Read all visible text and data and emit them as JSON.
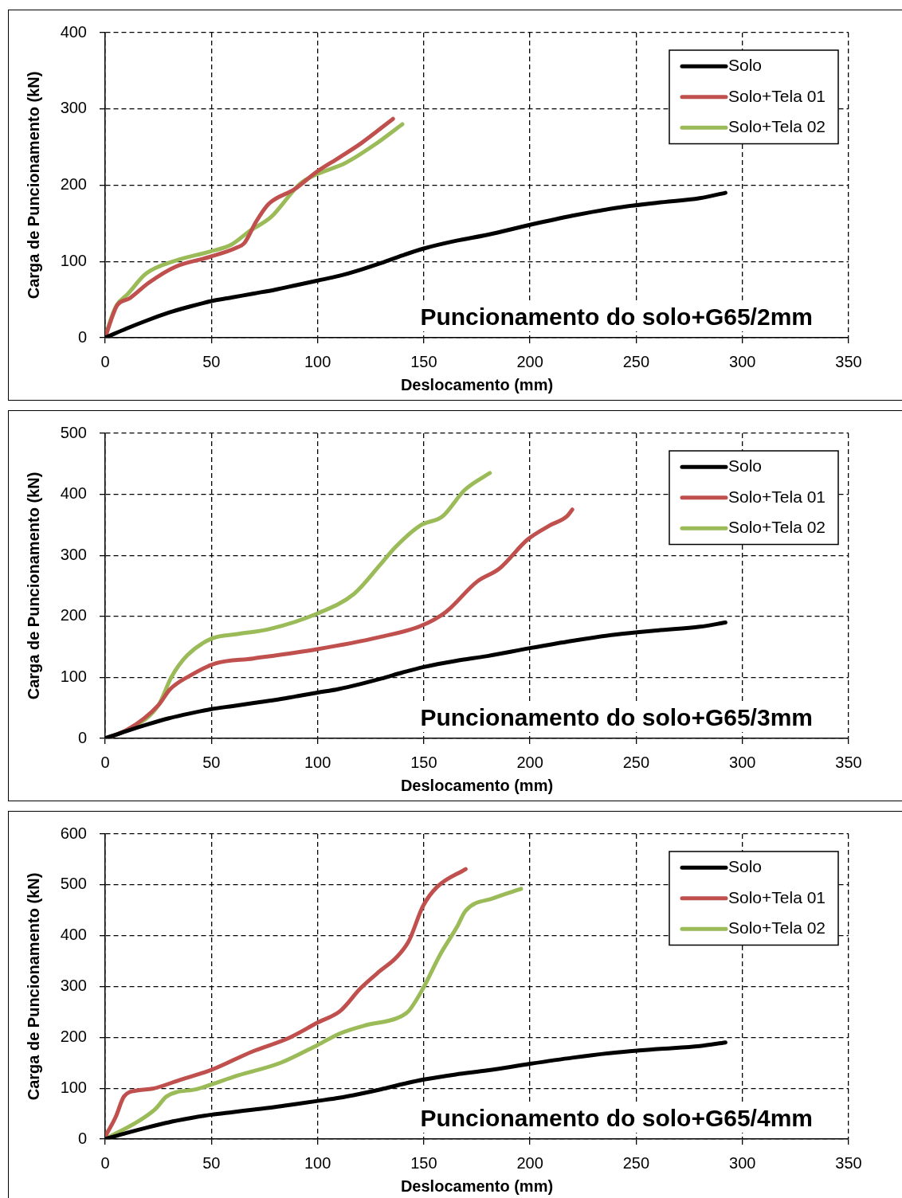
{
  "chart_data": [
    {
      "type": "line",
      "title": "Puncionamento do solo+G65/2mm",
      "xlabel": "Deslocamento (mm)",
      "ylabel": "Carga de Puncionamento (kN)",
      "xlim": [
        0,
        350
      ],
      "xticks": [
        0,
        50,
        100,
        150,
        200,
        250,
        300,
        350
      ],
      "ylim": [
        0,
        400
      ],
      "yticks": [
        0,
        100,
        200,
        300,
        400
      ],
      "grid": true,
      "legend": "top right",
      "marker": "none",
      "line_style": "solid",
      "series": [
        {
          "name": "Solo",
          "color": "#000000",
          "x": [
            0,
            10,
            20,
            30,
            40,
            50,
            60,
            70,
            80,
            90,
            100,
            110,
            120,
            130,
            140,
            150,
            165,
            180,
            200,
            220,
            240,
            260,
            280,
            292
          ],
          "values": [
            0,
            12,
            23,
            33,
            41,
            48,
            53,
            58,
            63,
            69,
            75,
            81,
            89,
            98,
            108,
            117,
            127,
            135,
            148,
            160,
            170,
            177,
            183,
            190
          ]
        },
        {
          "name": "Solo+Tela 01",
          "color": "#c0504d",
          "x": [
            0,
            3,
            5.5,
            11.7,
            20.5,
            33,
            49.3,
            61.8,
            65.5,
            71,
            76.8,
            89.3,
            99.3,
            110,
            120.5,
            135.5
          ],
          "values": [
            0,
            25,
            42,
            52,
            72,
            93,
            106,
            118,
            124,
            152,
            175,
            195,
            217,
            236,
            255,
            287
          ]
        },
        {
          "name": "Solo+Tela 02",
          "color": "#9bbb59",
          "x": [
            0,
            3,
            5.5,
            10.5,
            19.2,
            33,
            49.3,
            59.3,
            68,
            78,
            91.8,
            99.3,
            113,
            126.8,
            139.9
          ],
          "values": [
            0,
            27,
            43,
            57,
            84,
            101,
            113,
            122,
            140,
            158,
            202,
            214,
            229,
            253,
            280
          ]
        }
      ]
    },
    {
      "type": "line",
      "title": "Puncionamento do solo+G65/3mm",
      "xlabel": "Deslocamento (mm)",
      "ylabel": "Carga de Puncionamento (kN)",
      "xlim": [
        0,
        350
      ],
      "xticks": [
        0,
        50,
        100,
        150,
        200,
        250,
        300,
        350
      ],
      "ylim": [
        0,
        500
      ],
      "yticks": [
        0,
        100,
        200,
        300,
        400,
        500
      ],
      "grid": true,
      "legend": "top right",
      "marker": "none",
      "line_style": "solid",
      "series": [
        {
          "name": "Solo",
          "color": "#000000",
          "x": [
            0,
            10,
            20,
            30,
            40,
            50,
            60,
            70,
            80,
            90,
            100,
            110,
            120,
            130,
            140,
            150,
            165,
            180,
            200,
            220,
            240,
            260,
            280,
            292
          ],
          "values": [
            0,
            12,
            23,
            33,
            41,
            48,
            53,
            58,
            63,
            69,
            75,
            81,
            89,
            98,
            108,
            117,
            127,
            135,
            148,
            160,
            170,
            177,
            183,
            190
          ]
        },
        {
          "name": "Solo+Tela 01",
          "color": "#c0504d",
          "x": [
            0,
            10.4,
            25.2,
            30.4,
            40,
            51.9,
            69.7,
            99.4,
            129.1,
            148.4,
            160.3,
            175.1,
            185.5,
            198.9,
            209.3,
            217.4,
            219.9
          ],
          "values": [
            0,
            14,
            55,
            80,
            103,
            123,
            131,
            146,
            166,
            184,
            207,
            257,
            278,
            326,
            349,
            364,
            375
          ]
        },
        {
          "name": "Solo+Tela 02",
          "color": "#9bbb59",
          "x": [
            0,
            10.4,
            25.2,
            31.1,
            38.6,
            50.4,
            62.3,
            77.1,
            99.4,
            117.2,
            129.1,
            136.5,
            148.4,
            158.8,
            169.2,
            181.1
          ],
          "values": [
            0,
            14,
            55,
            100,
            136,
            164,
            171,
            179,
            204,
            237,
            283,
            313,
            349,
            364,
            407,
            435
          ]
        }
      ]
    },
    {
      "type": "line",
      "title": "Puncionamento do solo+G65/4mm",
      "xlabel": "Deslocamento (mm)",
      "ylabel": "Carga de Puncionamento (kN)",
      "xlim": [
        0,
        350
      ],
      "xticks": [
        0,
        50,
        100,
        150,
        200,
        250,
        300,
        350
      ],
      "ylim": [
        0,
        600
      ],
      "yticks": [
        0,
        100,
        200,
        300,
        400,
        500,
        600
      ],
      "grid": true,
      "legend": "top right",
      "marker": "none",
      "line_style": "solid",
      "series": [
        {
          "name": "Solo",
          "color": "#000000",
          "x": [
            0,
            10,
            20,
            30,
            40,
            50,
            60,
            70,
            80,
            90,
            100,
            110,
            120,
            130,
            140,
            150,
            165,
            180,
            200,
            220,
            240,
            260,
            280,
            292
          ],
          "values": [
            0,
            12,
            23,
            33,
            41,
            48,
            53,
            58,
            63,
            69,
            75,
            81,
            89,
            98,
            108,
            117,
            127,
            135,
            148,
            160,
            170,
            177,
            183,
            190
          ]
        },
        {
          "name": "Solo+Tela 01",
          "color": "#c0504d",
          "x": [
            0,
            4.9,
            8.9,
            15.6,
            22.3,
            35.7,
            50,
            69.2,
            86.6,
            100,
            110.7,
            120.1,
            129.5,
            136.8,
            142.9,
            149.6,
            156.3,
            169.7
          ],
          "values": [
            5,
            43,
            84,
            96,
            99,
            117,
            136,
            172,
            199,
            229,
            252,
            296,
            331,
            356,
            389,
            458,
            496,
            531
          ]
        },
        {
          "name": "Solo+Tela 02",
          "color": "#9bbb59",
          "x": [
            0,
            15.6,
            23.6,
            29,
            43.7,
            62.5,
            82.6,
            100,
            110.7,
            122.8,
            137.5,
            142.9,
            149.6,
            157.6,
            165.6,
            169.7,
            183,
            195.8
          ],
          "values": [
            0,
            35,
            59,
            84,
            99,
            125,
            150,
            185,
            208,
            224,
            238,
            252,
            296,
            362,
            417,
            449,
            474,
            492
          ]
        }
      ]
    }
  ]
}
